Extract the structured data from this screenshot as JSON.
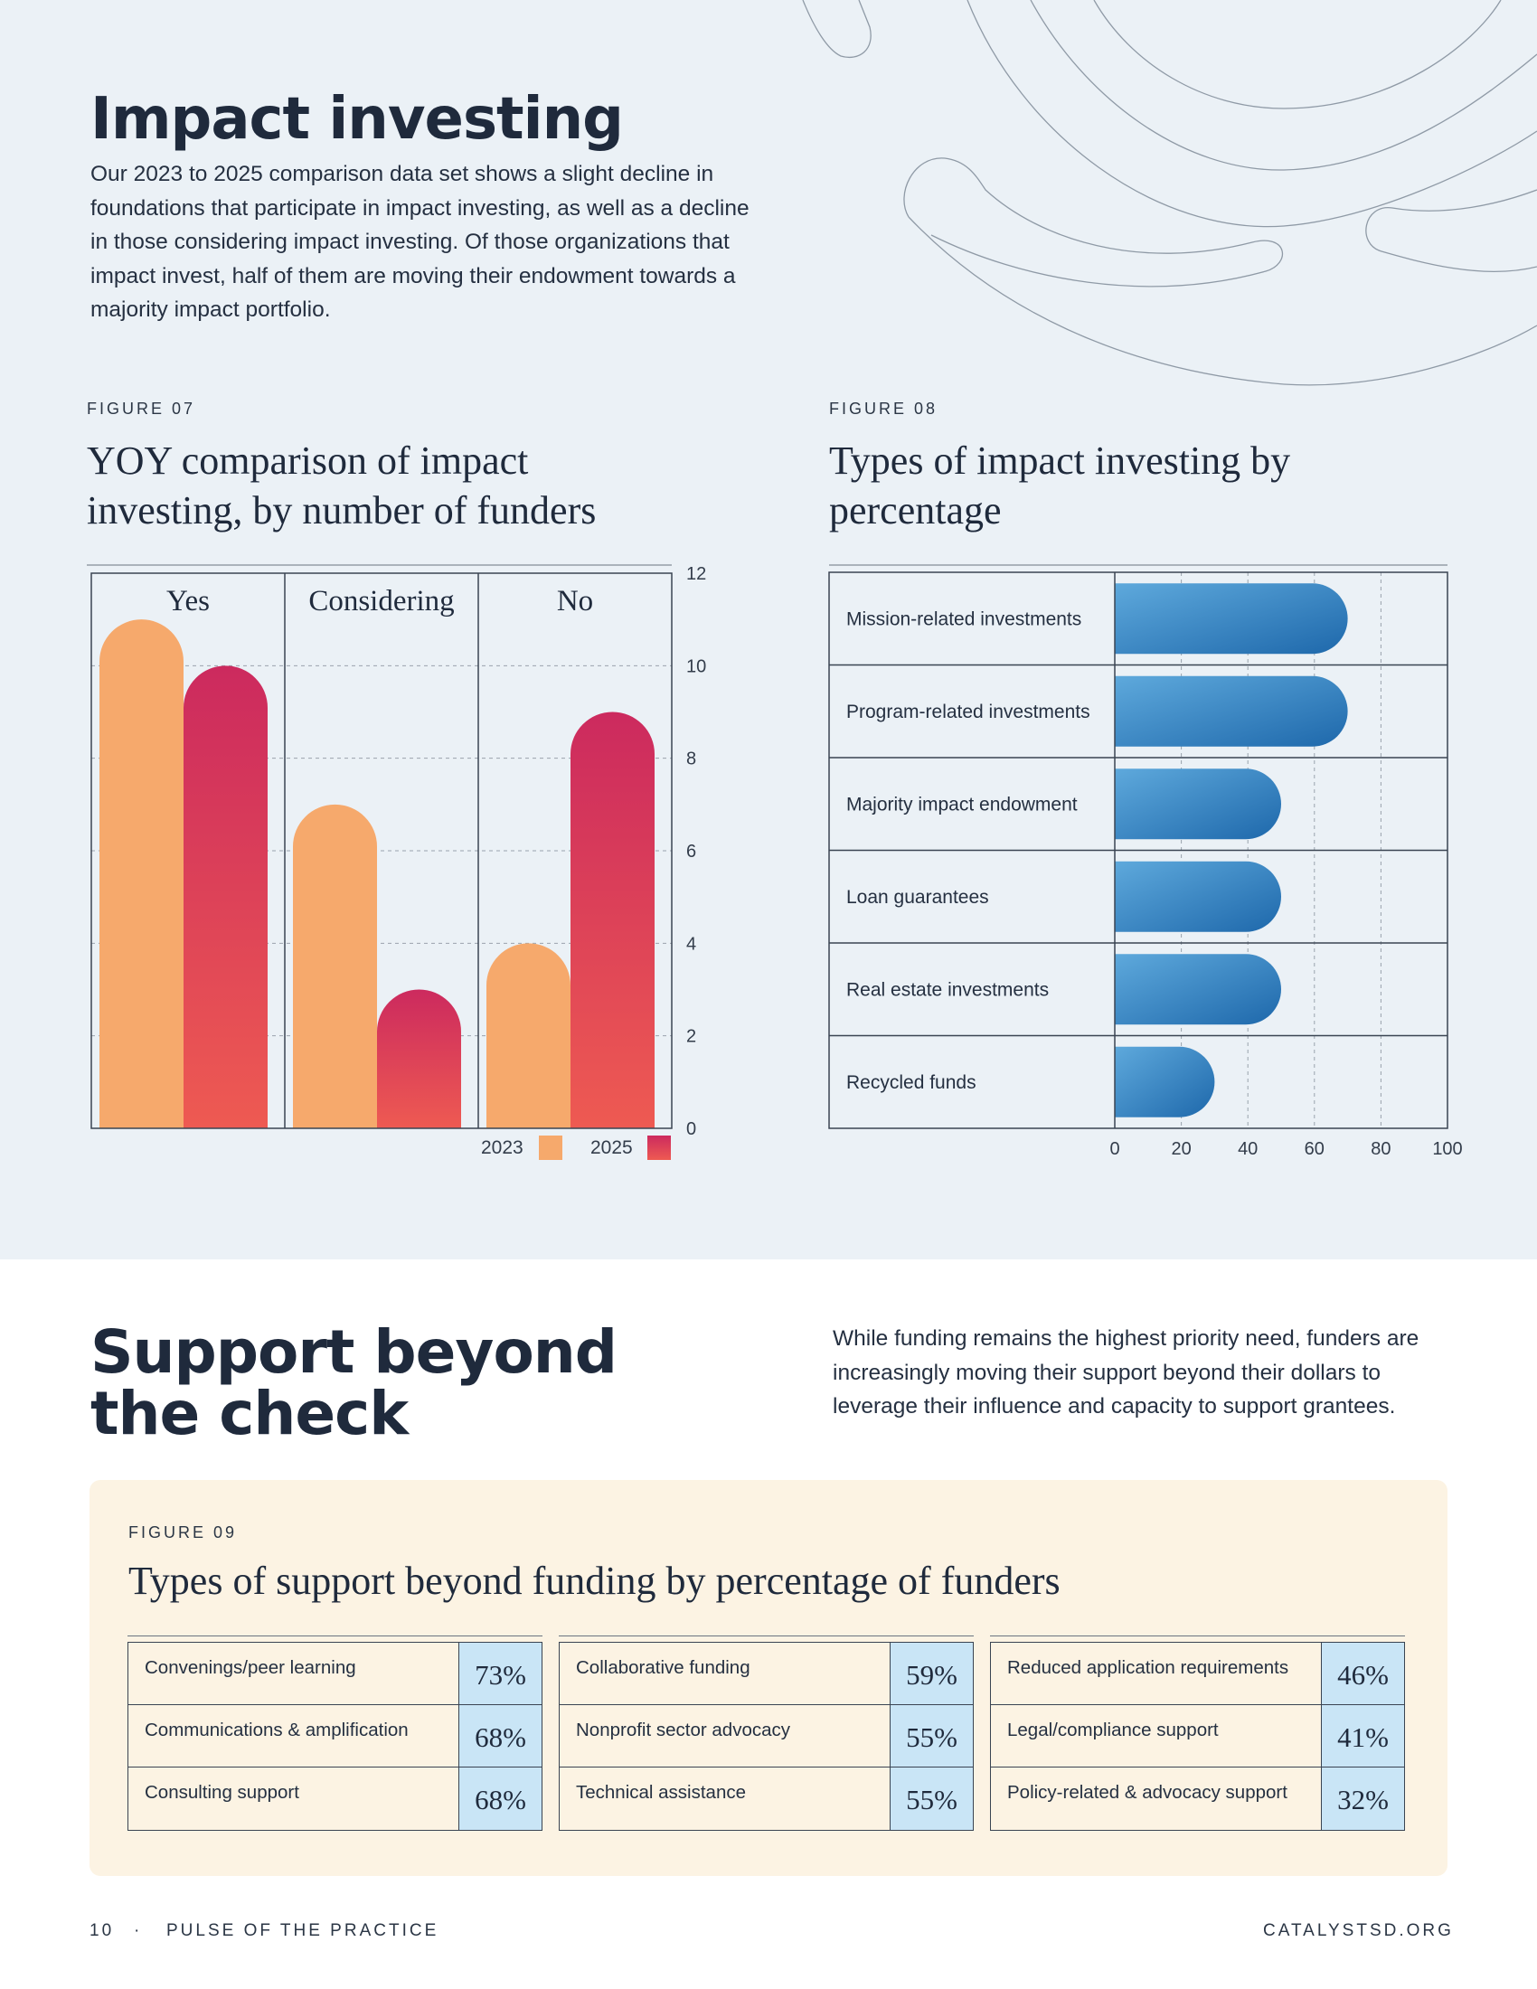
{
  "impact": {
    "title": "Impact investing",
    "intro": "Our 2023 to 2025 comparison data set shows a slight decline in foundations that participate in impact investing, as well as a decline in those considering impact investing. Of those organizations that impact invest, half of them are moving their endowment towards a majority impact portfolio."
  },
  "figure07": {
    "label": "FIGURE 07",
    "title_line1": "YOY comparison of impact",
    "title_line2": "investing, by number of funders"
  },
  "figure08": {
    "label": "FIGURE 08",
    "title_line1": "Types of impact investing by",
    "title_line2": "percentage"
  },
  "support": {
    "title_line1": "Support beyond",
    "title_line2": "the check",
    "description": "While funding remains the highest priority need, funders are increasingly moving their support beyond their dollars to leverage their influence and capacity to support grantees."
  },
  "figure09": {
    "label": "FIGURE 09",
    "title": "Types of support beyond funding by percentage of funders",
    "tables": [
      {
        "rows": [
          {
            "label": "Convenings/peer learning",
            "value": "73%"
          },
          {
            "label": "Communications & amplification",
            "value": "68%"
          },
          {
            "label": "Consulting support",
            "value": "68%"
          }
        ]
      },
      {
        "rows": [
          {
            "label": "Collaborative funding",
            "value": "59%"
          },
          {
            "label": "Nonprofit sector advocacy",
            "value": "55%"
          },
          {
            "label": "Technical assistance",
            "value": "55%"
          }
        ]
      },
      {
        "rows": [
          {
            "label": "Reduced application requirements",
            "value": "46%"
          },
          {
            "label": "Legal/compliance support",
            "value": "41%"
          },
          {
            "label": "Policy-related & advocacy support",
            "value": "32%"
          }
        ]
      }
    ]
  },
  "footer": {
    "page_number": "10",
    "separator": "·",
    "publication": "PULSE OF THE PRACTICE",
    "website": "CATALYSTSD.ORG"
  },
  "colors": {
    "background_band": "#ebf1f6",
    "series_2023": "#f6a96c",
    "series_2025_top": "#cc2a5e",
    "series_2025_bottom": "#ee5a52",
    "bar_blue_light": "#5ea9dc",
    "bar_blue_dark": "#1e68ab",
    "percent_cell": "#c9e5f6",
    "panel": "#fcf3e3"
  },
  "chart_data": [
    {
      "type": "bar",
      "categories": [
        "Yes",
        "Considering",
        "No"
      ],
      "series": [
        {
          "name": "2023",
          "values": [
            11,
            7,
            4
          ]
        },
        {
          "name": "2025",
          "values": [
            10,
            3,
            9
          ]
        }
      ],
      "yticks": [
        "0",
        "2",
        "4",
        "6",
        "8",
        "10",
        "12"
      ],
      "ylim": [
        0,
        12
      ],
      "grid": true,
      "legend": "bottom-right"
    },
    {
      "type": "bar",
      "orientation": "horizontal",
      "categories": [
        "Mission-related investments",
        "Program-related investments",
        "Majority impact endowment",
        "Loan guarantees",
        "Real estate investments",
        "Recycled funds"
      ],
      "values": [
        70,
        70,
        50,
        50,
        50,
        30
      ],
      "xticks": [
        "0",
        "20",
        "40",
        "60",
        "80",
        "100"
      ],
      "xlim": [
        0,
        100
      ],
      "grid": true
    }
  ]
}
